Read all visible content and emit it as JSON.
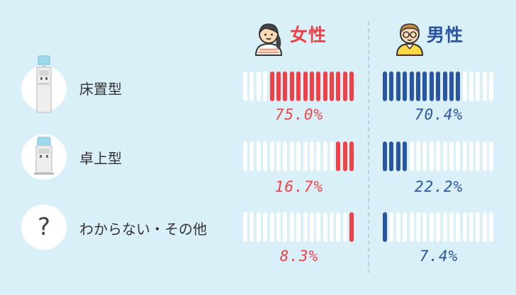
{
  "colors": {
    "female": "#f04148",
    "male": "#2a55a0",
    "empty": "#ffffff",
    "background": "#daf0f8"
  },
  "headers": {
    "female": "女性",
    "male": "男性"
  },
  "icons": {
    "female": "girl-avatar-icon",
    "male": "boy-with-glasses-avatar-icon"
  },
  "chart_data": {
    "type": "bar",
    "bar_segments": 17,
    "categories": [
      {
        "label": "床置型",
        "icon": "floor-water-dispenser-icon"
      },
      {
        "label": "卓上型",
        "icon": "tabletop-water-dispenser-icon"
      },
      {
        "label": "わからない・その他",
        "icon": "question-mark-icon",
        "icon_text": "?"
      }
    ],
    "series": [
      {
        "name": "女性",
        "values": [
          75.0,
          16.7,
          8.3
        ],
        "labels": [
          "75.0%",
          "16.7%",
          "8.3%"
        ]
      },
      {
        "name": "男性",
        "values": [
          70.4,
          22.2,
          7.4
        ],
        "labels": [
          "70.4%",
          "22.2%",
          "7.4%"
        ]
      }
    ]
  }
}
